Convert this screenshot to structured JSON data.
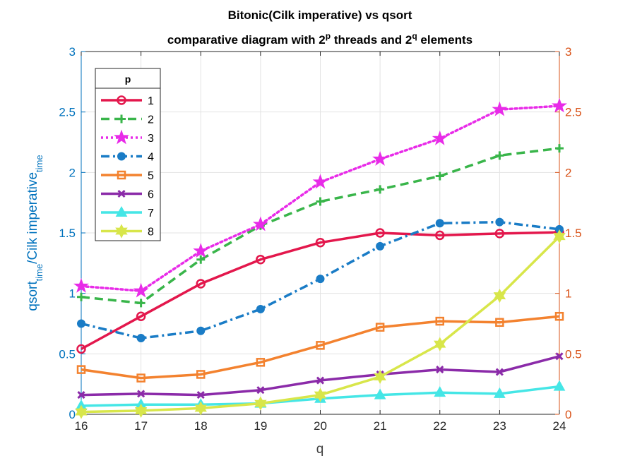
{
  "chart_data": {
    "type": "line",
    "title_line1": "Bitonic(Cilk imperative) vs qsort",
    "title_line2": {
      "pre": "comparative diagram with 2",
      "sup1": "p",
      "mid": " threads and 2",
      "sup2": "q",
      "post": " elements"
    },
    "xlabel": "q",
    "ylabel": {
      "a": "qsort",
      "a_sub": "time",
      "b": "/Cilk imperative",
      "b_sub": "time"
    },
    "x": [
      16,
      17,
      18,
      19,
      20,
      21,
      22,
      23,
      24
    ],
    "xlim": [
      16,
      24
    ],
    "ylim": [
      0,
      3
    ],
    "xticks": [
      "16",
      "17",
      "18",
      "19",
      "20",
      "21",
      "22",
      "23",
      "24"
    ],
    "yticks_left": [
      "0",
      "0.5",
      "1",
      "1.5",
      "2",
      "2.5",
      "3"
    ],
    "yticks_right": [
      "0",
      "0.5",
      "1",
      "1.5",
      "2",
      "2.5",
      "3"
    ],
    "left_axis_color": "#0072BD",
    "right_axis_color": "#D95319",
    "grid": true,
    "legend": {
      "title": "p",
      "placement": "top-left"
    },
    "series": [
      {
        "name": "1",
        "color": "#E3174C",
        "dash": "solid",
        "marker": "circle",
        "values": [
          0.54,
          0.81,
          1.08,
          1.28,
          1.42,
          1.5,
          1.48,
          1.495,
          1.505
        ]
      },
      {
        "name": "2",
        "color": "#39B54A",
        "dash": "dashed",
        "marker": "plus",
        "values": [
          0.97,
          0.92,
          1.28,
          1.56,
          1.76,
          1.86,
          1.97,
          2.14,
          2.2
        ]
      },
      {
        "name": "3",
        "color": "#E82BE8",
        "dash": "dotted",
        "marker": "star",
        "values": [
          1.06,
          1.02,
          1.35,
          1.57,
          1.92,
          2.11,
          2.28,
          2.52,
          2.55
        ]
      },
      {
        "name": "4",
        "color": "#1A7CC6",
        "dash": "dashdot",
        "marker": "dot",
        "values": [
          0.75,
          0.63,
          0.69,
          0.87,
          1.12,
          1.39,
          1.58,
          1.59,
          1.53
        ]
      },
      {
        "name": "5",
        "color": "#F3822F",
        "dash": "solid",
        "marker": "square",
        "values": [
          0.37,
          0.3,
          0.33,
          0.43,
          0.57,
          0.72,
          0.77,
          0.76,
          0.81
        ]
      },
      {
        "name": "6",
        "color": "#8B2BA9",
        "dash": "solid",
        "marker": "x",
        "values": [
          0.16,
          0.17,
          0.16,
          0.2,
          0.28,
          0.33,
          0.37,
          0.35,
          0.48
        ]
      },
      {
        "name": "7",
        "color": "#45E6E6",
        "dash": "solid",
        "marker": "triangle",
        "values": [
          0.07,
          0.08,
          0.08,
          0.09,
          0.13,
          0.16,
          0.18,
          0.17,
          0.23
        ]
      },
      {
        "name": "8",
        "color": "#D8E64A",
        "dash": "solid",
        "marker": "hexagram",
        "values": [
          0.02,
          0.03,
          0.05,
          0.09,
          0.16,
          0.31,
          0.58,
          0.98,
          1.47
        ]
      }
    ]
  }
}
